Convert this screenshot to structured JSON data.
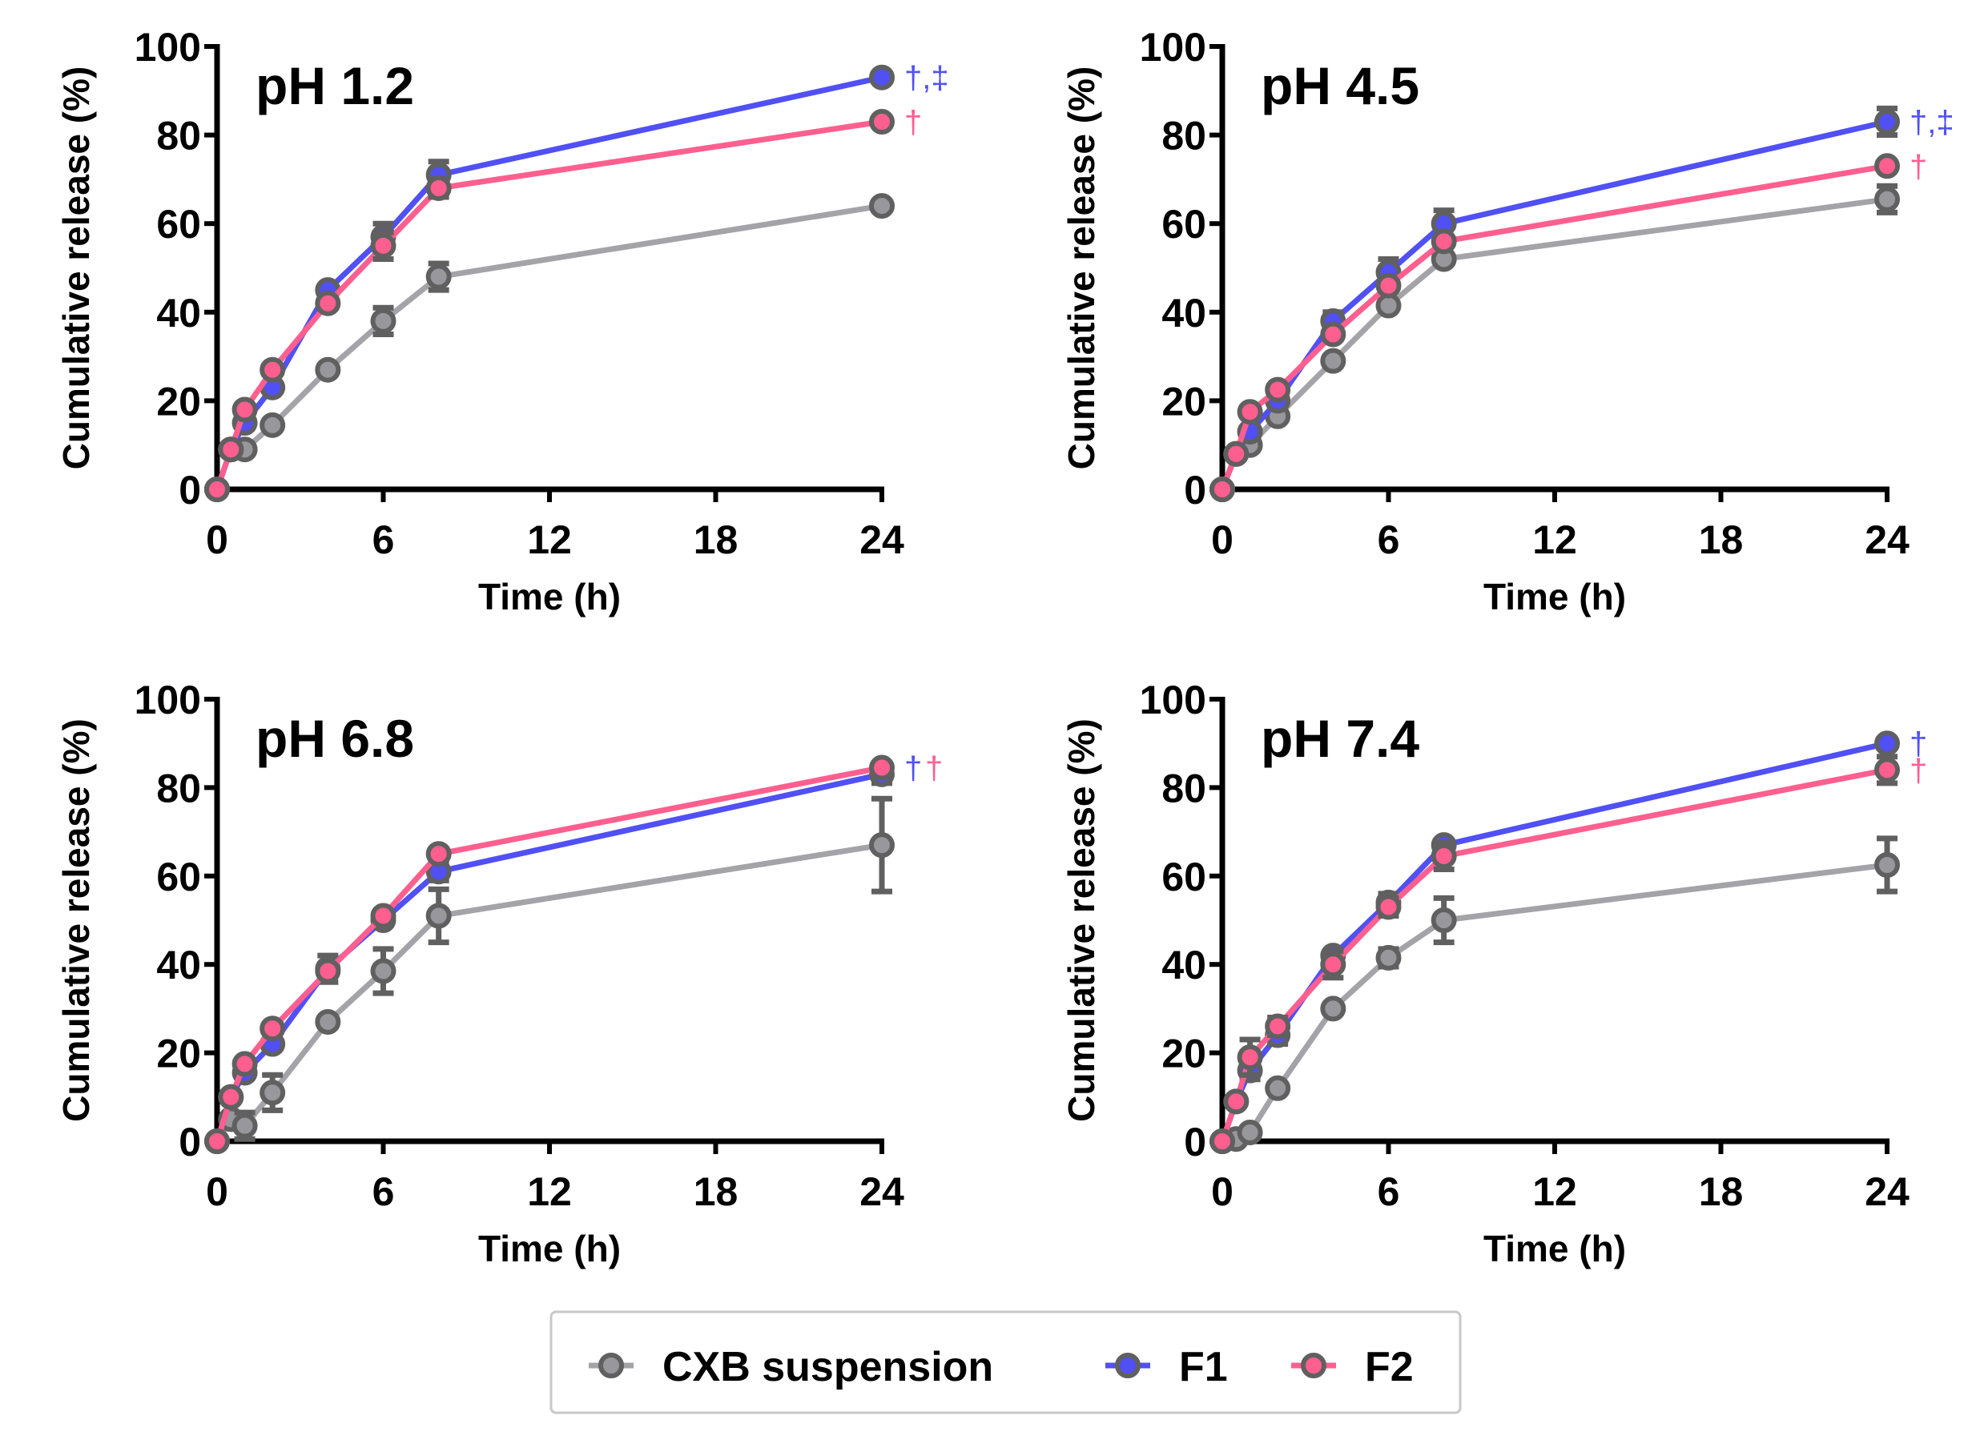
{
  "chart_data": [
    {
      "type": "line",
      "title": "pH 1.2",
      "xlabel": "Time (h)",
      "ylabel": "Cumulative release (%)",
      "xlim": [
        0,
        24
      ],
      "ylim": [
        0,
        100
      ],
      "xticks": [
        "0",
        "6",
        "12",
        "18",
        "24"
      ],
      "yticks": [
        "0",
        "20",
        "40",
        "60",
        "80",
        "100"
      ],
      "x": [
        0,
        0.5,
        1,
        2,
        4,
        6,
        8,
        24
      ],
      "series": [
        {
          "name": "CXB suspension",
          "values": [
            0,
            9,
            9,
            14.5,
            27,
            38,
            48,
            64
          ],
          "errors": [
            0,
            0,
            1,
            1,
            1,
            3,
            3,
            1
          ],
          "annotation": ""
        },
        {
          "name": "F1",
          "values": [
            0,
            9,
            15,
            23,
            45,
            57,
            71,
            93
          ],
          "errors": [
            0,
            0,
            1,
            1,
            1,
            3,
            3,
            1
          ],
          "annotation": "†,‡"
        },
        {
          "name": "F2",
          "values": [
            0,
            9,
            18,
            27,
            42,
            55,
            68,
            83
          ],
          "errors": [
            0,
            0,
            1,
            1,
            1,
            3,
            2,
            1
          ],
          "annotation": "†"
        }
      ]
    },
    {
      "type": "line",
      "title": "pH 4.5",
      "xlabel": "Time (h)",
      "ylabel": "Cumulative release (%)",
      "xlim": [
        0,
        24
      ],
      "ylim": [
        0,
        100
      ],
      "xticks": [
        "0",
        "6",
        "12",
        "18",
        "24"
      ],
      "yticks": [
        "0",
        "20",
        "40",
        "60",
        "80",
        "100"
      ],
      "x": [
        0,
        0.5,
        1,
        2,
        4,
        6,
        8,
        24
      ],
      "series": [
        {
          "name": "CXB suspension",
          "values": [
            0,
            8,
            10,
            16.5,
            29,
            41.5,
            52,
            65.5
          ],
          "errors": [
            0,
            0,
            1,
            1,
            1,
            1,
            1,
            3
          ],
          "annotation": ""
        },
        {
          "name": "F1",
          "values": [
            0,
            8,
            13,
            20,
            38,
            49,
            60,
            83
          ],
          "errors": [
            0,
            0,
            1,
            1,
            2,
            3,
            3,
            3
          ],
          "annotation": "†,‡"
        },
        {
          "name": "F2",
          "values": [
            0,
            8,
            17.5,
            22.5,
            35,
            46,
            56,
            73
          ],
          "errors": [
            0,
            0,
            1,
            1,
            1,
            1,
            1,
            1
          ],
          "annotation": "†"
        }
      ]
    },
    {
      "type": "line",
      "title": "pH 6.8",
      "xlabel": "Time (h)",
      "ylabel": "Cumulative release (%)",
      "xlim": [
        0,
        24
      ],
      "ylim": [
        0,
        100
      ],
      "xticks": [
        "0",
        "6",
        "12",
        "18",
        "24"
      ],
      "yticks": [
        "0",
        "20",
        "40",
        "60",
        "80",
        "100"
      ],
      "x": [
        0,
        0.5,
        1,
        2,
        4,
        6,
        8,
        24
      ],
      "series": [
        {
          "name": "CXB suspension",
          "values": [
            0,
            5,
            3.5,
            11,
            27,
            38.5,
            51,
            67
          ],
          "errors": [
            0,
            0,
            3,
            4,
            1,
            5,
            6,
            10.5
          ],
          "annotation": ""
        },
        {
          "name": "F1",
          "values": [
            0,
            10,
            15.5,
            22,
            39,
            50,
            61,
            83
          ],
          "errors": [
            0,
            0,
            1,
            1,
            3,
            1,
            2,
            2
          ],
          "annotation": "†"
        },
        {
          "name": "F2",
          "values": [
            0,
            10,
            17.5,
            25.5,
            38.5,
            51,
            65,
            84.5
          ],
          "errors": [
            0,
            0,
            1,
            1,
            1,
            1,
            1,
            1
          ],
          "annotation": "†"
        }
      ]
    },
    {
      "type": "line",
      "title": "pH 7.4",
      "xlabel": "Time (h)",
      "ylabel": "Cumulative release (%)",
      "xlim": [
        0,
        24
      ],
      "ylim": [
        0,
        100
      ],
      "xticks": [
        "0",
        "6",
        "12",
        "18",
        "24"
      ],
      "yticks": [
        "0",
        "20",
        "40",
        "60",
        "80",
        "100"
      ],
      "x": [
        0,
        0.5,
        1,
        2,
        4,
        6,
        8,
        24
      ],
      "series": [
        {
          "name": "CXB suspension",
          "values": [
            0,
            0.5,
            2,
            12,
            30,
            41.5,
            50,
            62.5
          ],
          "errors": [
            0,
            0,
            1,
            1,
            1,
            2,
            5,
            6
          ],
          "annotation": ""
        },
        {
          "name": "F1",
          "values": [
            0,
            9,
            16,
            24,
            42,
            54,
            67,
            90
          ],
          "errors": [
            0,
            0,
            2,
            2,
            1,
            2,
            1,
            1
          ],
          "annotation": "†"
        },
        {
          "name": "F2",
          "values": [
            0,
            9,
            19,
            26,
            40,
            53,
            64.5,
            84
          ],
          "errors": [
            0,
            0,
            4,
            2,
            3,
            2,
            3,
            3
          ],
          "annotation": "†"
        }
      ]
    }
  ],
  "legend": {
    "placement": "bottom-center",
    "items": [
      {
        "label": "CXB suspension",
        "line_color": "#a3a3a8",
        "fill_color": "#98989c"
      },
      {
        "label": "F1",
        "line_color": "#5050f5",
        "fill_color": "#5050f5"
      },
      {
        "label": "F2",
        "line_color": "#ff5f8f",
        "fill_color": "#ff5f8f"
      }
    ]
  },
  "colors": {
    "marker_edge": "#606060",
    "axis": "#000000"
  }
}
